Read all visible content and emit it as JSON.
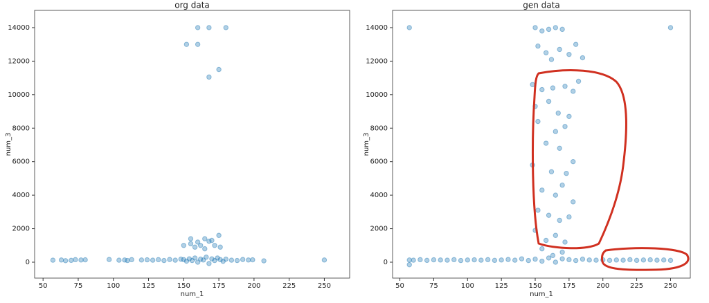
{
  "chart_data": [
    {
      "type": "scatter",
      "title": "org data",
      "xlabel": "num_1",
      "ylabel": "num_3",
      "color": "#1f77b4",
      "x": [
        57,
        63,
        66,
        70,
        73,
        77,
        80,
        97,
        104,
        108,
        110,
        113,
        120,
        124,
        128,
        132,
        136,
        140,
        144,
        148,
        150,
        152,
        154,
        156,
        158,
        160,
        162,
        164,
        166,
        168,
        170,
        172,
        174,
        176,
        178,
        180,
        184,
        188,
        192,
        196,
        199,
        207,
        250,
        155,
        160,
        165,
        170,
        175,
        172,
        158,
        162,
        168,
        176,
        150,
        165,
        155,
        152,
        160,
        160,
        168,
        180,
        175,
        168
      ],
      "y": [
        120,
        130,
        90,
        110,
        150,
        130,
        140,
        160,
        120,
        130,
        100,
        150,
        130,
        140,
        120,
        150,
        100,
        160,
        120,
        180,
        150,
        60,
        200,
        100,
        250,
        0,
        180,
        130,
        300,
        -80,
        200,
        100,
        250,
        150,
        50,
        180,
        120,
        100,
        160,
        130,
        140,
        80,
        130,
        1100,
        1200,
        1400,
        1300,
        1600,
        1000,
        900,
        1000,
        1250,
        900,
        1000,
        800,
        1400,
        13000,
        14000,
        13000,
        14000,
        14000,
        11500,
        11050
      ],
      "xlim": [
        44,
        268
      ],
      "ylim": [
        -950,
        15030
      ],
      "xticks": [
        50,
        75,
        100,
        125,
        150,
        175,
        200,
        225,
        250
      ],
      "yticks": [
        0,
        2000,
        4000,
        6000,
        8000,
        10000,
        12000,
        14000
      ]
    },
    {
      "type": "scatter",
      "title": "gen data",
      "xlabel": "num_1",
      "ylabel": "num_3",
      "color": "#1f77b4",
      "x": [
        57,
        60,
        65,
        70,
        75,
        80,
        85,
        90,
        95,
        100,
        105,
        110,
        115,
        120,
        125,
        130,
        135,
        140,
        145,
        150,
        155,
        160,
        165,
        170,
        175,
        180,
        185,
        190,
        195,
        200,
        205,
        210,
        215,
        220,
        225,
        230,
        235,
        240,
        245,
        250,
        150,
        155,
        160,
        165,
        170,
        152,
        158,
        162,
        168,
        175,
        180,
        185,
        148,
        155,
        163,
        172,
        178,
        182,
        150,
        160,
        167,
        175,
        152,
        165,
        172,
        158,
        168,
        178,
        148,
        162,
        173,
        155,
        165,
        170,
        178,
        152,
        160,
        168,
        175,
        150,
        158,
        165,
        172,
        155,
        163,
        170,
        57,
        250,
        57
      ],
      "y": [
        130,
        120,
        150,
        110,
        140,
        130,
        120,
        150,
        100,
        130,
        140,
        120,
        150,
        110,
        130,
        160,
        120,
        200,
        100,
        180,
        60,
        250,
        0,
        200,
        150,
        100,
        180,
        130,
        120,
        140,
        110,
        130,
        120,
        150,
        110,
        130,
        140,
        120,
        130,
        110,
        14000,
        13800,
        13900,
        14000,
        13900,
        12900,
        12500,
        12100,
        12700,
        12400,
        13000,
        12200,
        10600,
        10300,
        10400,
        10500,
        10200,
        10800,
        9300,
        9600,
        8900,
        8700,
        8400,
        7800,
        8100,
        7100,
        6800,
        6000,
        5800,
        5400,
        5300,
        4300,
        4000,
        4600,
        3600,
        3100,
        2800,
        2500,
        2700,
        1900,
        1300,
        1600,
        1200,
        800,
        400,
        600,
        14000,
        14000,
        -150
      ],
      "xlim": [
        44.6,
        264.6
      ],
      "ylim": [
        -950,
        15030
      ],
      "xticks": [
        50,
        75,
        100,
        125,
        150,
        175,
        200,
        225,
        250
      ],
      "yticks": [
        0,
        2000,
        4000,
        6000,
        8000,
        10000,
        12000,
        14000
      ]
    }
  ]
}
